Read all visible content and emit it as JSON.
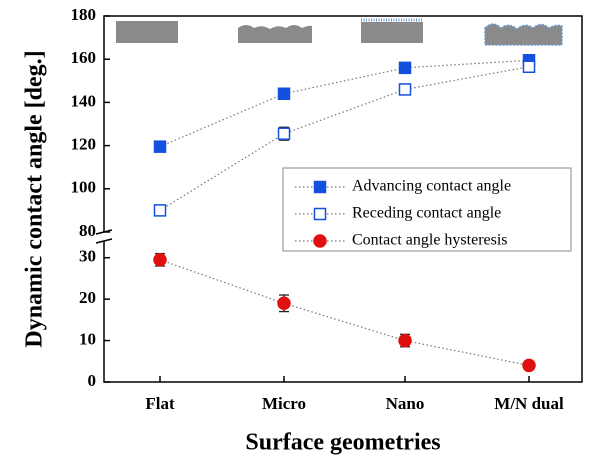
{
  "chart_data": {
    "type": "line",
    "x_label": "Surface geometries",
    "y_label": "Dynamic contact angle [deg.]",
    "categories": [
      "Flat",
      "Micro",
      "Nano",
      "M/N dual"
    ],
    "axes": [
      {
        "ylim": [
          80,
          180
        ],
        "yticks": [
          80,
          100,
          120,
          140,
          160,
          180
        ]
      },
      {
        "ylim": [
          0,
          35
        ],
        "yticks": [
          0,
          10,
          20,
          30
        ]
      }
    ],
    "series": [
      {
        "name": "Advancing contact angle",
        "color": "#1450e0",
        "marker": "square",
        "filled": true,
        "axis_index": 0,
        "values": [
          119.5,
          144,
          156,
          159.5
        ],
        "errors": [
          1.5,
          1.5,
          1.5,
          1.5
        ]
      },
      {
        "name": "Receding contact angle",
        "color": "#1450e0",
        "marker": "square",
        "filled": false,
        "axis_index": 0,
        "values": [
          90,
          125.5,
          146,
          156.5
        ],
        "errors": [
          1.5,
          3,
          1.5,
          1.5
        ]
      },
      {
        "name": "Contact angle hysteresis",
        "color": "#e01010",
        "marker": "circle",
        "filled": true,
        "axis_index": 1,
        "values": [
          29.5,
          19,
          10,
          4
        ],
        "errors": [
          1.5,
          2,
          1.5,
          1
        ]
      }
    ]
  }
}
